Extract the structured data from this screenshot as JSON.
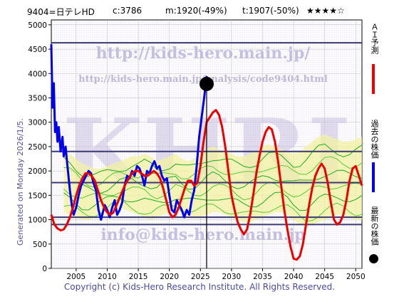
{
  "header": {
    "code_name": "9404=日テレHD",
    "current": "c:3786",
    "m_value": "m:1920(-49%)",
    "t_value": "t:1907(-50%)",
    "stars": "★★★★☆"
  },
  "side_note": "Generated on Monday 2026/1/5.",
  "watermarks": {
    "url": "http://kids-hero.main.jp/",
    "analysis_url": "http://kids-hero.main.jp/analysis/code9404.html",
    "big": "KHRI",
    "email": "info@kids-hero.main.jp"
  },
  "footer": "Copyright (c) Kids-Hero Research Institute. All Rights Reserved.",
  "legend": {
    "ai_forecast": "ＡＩ予測",
    "past_price": "過去の株価",
    "latest_price": "最新の株価",
    "ai_color": "#ee0000",
    "past_color": "#0000ee",
    "latest_color": "#000000"
  },
  "chart_data": {
    "type": "line",
    "xlim": [
      2001,
      2051
    ],
    "ylim": [
      0,
      5100
    ],
    "x_ticks": [
      2005,
      2010,
      2015,
      2020,
      2025,
      2030,
      2035,
      2040,
      2045,
      2050
    ],
    "y_ticks": [
      0,
      500,
      1000,
      1500,
      2000,
      2500,
      3000,
      3500,
      4000,
      4500,
      5000
    ],
    "grid": true,
    "horizontal_levels": [
      4630,
      2400,
      1760,
      1050,
      900
    ],
    "current_marker": {
      "x": 2026.0,
      "y": 3786
    },
    "vertical_marker_x": 2026.0,
    "series": [
      {
        "color": "#0000ee",
        "x": [
          2001.0,
          2001.2,
          2001.4,
          2001.6,
          2001.8,
          2002.0,
          2002.2,
          2002.5,
          2002.8,
          2003.0,
          2003.3,
          2003.6,
          2004.0,
          2004.3,
          2004.6,
          2005.0,
          2005.4,
          2005.8,
          2006.2,
          2006.6,
          2007.0,
          2007.4,
          2007.8,
          2008.2,
          2008.6,
          2009.0,
          2009.3,
          2009.6,
          2010.0,
          2010.4,
          2010.8,
          2011.2,
          2011.6,
          2012.0,
          2012.4,
          2012.8,
          2013.2,
          2013.6,
          2014.0,
          2014.4,
          2014.8,
          2015.2,
          2015.6,
          2016.0,
          2016.4,
          2016.8,
          2017.2,
          2017.6,
          2018.0,
          2018.4,
          2018.8,
          2019.2,
          2019.6,
          2020.0,
          2020.4,
          2020.8,
          2021.2,
          2021.6,
          2022.0,
          2022.4,
          2022.8,
          2023.2,
          2023.6,
          2024.0,
          2024.4,
          2024.8,
          2025.2,
          2025.6,
          2026.0
        ],
        "y": [
          4600,
          3300,
          3800,
          2800,
          3000,
          2600,
          2900,
          2400,
          2700,
          2300,
          2500,
          2100,
          1600,
          1300,
          1100,
          1250,
          1500,
          1700,
          1800,
          1900,
          2000,
          1950,
          1750,
          1600,
          1200,
          1000,
          1150,
          1300,
          1200,
          1050,
          1250,
          1400,
          1100,
          1200,
          1350,
          1700,
          1900,
          1850,
          2000,
          1900,
          2100,
          2050,
          1900,
          1700,
          2000,
          1950,
          2100,
          2200,
          2050,
          2100,
          1900,
          1800,
          1850,
          1500,
          1200,
          1150,
          1400,
          1300,
          1200,
          1050,
          1200,
          1100,
          1400,
          1600,
          2100,
          2700,
          3100,
          3500,
          3950
        ]
      },
      {
        "color": "#ee0000",
        "x": [
          2001.0,
          2001.5,
          2002.0,
          2002.5,
          2003.0,
          2003.5,
          2004.0,
          2004.5,
          2005.0,
          2005.5,
          2006.0,
          2006.5,
          2007.0,
          2007.5,
          2008.0,
          2008.5,
          2009.0,
          2009.5,
          2010.0,
          2010.5,
          2011.0,
          2011.5,
          2012.0,
          2012.5,
          2013.0,
          2013.5,
          2014.0,
          2014.5,
          2015.0,
          2015.5,
          2016.0,
          2016.5,
          2017.0,
          2017.5,
          2018.0,
          2018.5,
          2019.0,
          2019.5,
          2020.0,
          2020.5,
          2021.0,
          2021.5,
          2022.0,
          2022.5,
          2023.0,
          2023.5,
          2024.0,
          2024.5,
          2025.0,
          2025.5,
          2026.0,
          2026.5,
          2027.0,
          2027.5,
          2028.0,
          2028.5,
          2029.0,
          2029.5,
          2030.0,
          2030.5,
          2031.0,
          2031.5,
          2032.0,
          2032.5,
          2033.0,
          2033.5,
          2034.0,
          2034.5,
          2035.0,
          2035.5,
          2036.0,
          2036.5,
          2037.0,
          2037.5,
          2038.0,
          2038.5,
          2039.0,
          2039.5,
          2040.0,
          2040.5,
          2041.0,
          2041.5,
          2042.0,
          2042.5,
          2043.0,
          2043.5,
          2044.0,
          2044.5,
          2045.0,
          2045.5,
          2046.0,
          2046.5,
          2047.0,
          2047.5,
          2048.0,
          2048.5,
          2049.0,
          2049.5,
          2050.0,
          2050.5,
          2051.0
        ],
        "y": [
          1100,
          900,
          820,
          780,
          800,
          900,
          1050,
          1250,
          1500,
          1700,
          1850,
          1950,
          1950,
          1900,
          1800,
          1600,
          1400,
          1250,
          1150,
          1100,
          1150,
          1300,
          1450,
          1600,
          1750,
          1850,
          1950,
          2000,
          2000,
          1950,
          1900,
          1900,
          1950,
          2000,
          1950,
          1850,
          1650,
          1400,
          1150,
          1050,
          1100,
          1250,
          1450,
          1650,
          1800,
          1800,
          1700,
          1750,
          2100,
          2600,
          3000,
          3100,
          3200,
          3250,
          3150,
          2900,
          2500,
          2000,
          1500,
          1200,
          950,
          800,
          700,
          800,
          1100,
          1500,
          1950,
          2300,
          2600,
          2800,
          2900,
          2850,
          2600,
          2200,
          1700,
          1200,
          800,
          450,
          200,
          180,
          250,
          500,
          900,
          1300,
          1650,
          1900,
          2050,
          2150,
          2050,
          1750,
          1350,
          1000,
          900,
          950,
          1100,
          1400,
          1800,
          2050,
          2100,
          1900,
          1700
        ]
      }
    ],
    "band_upper": [
      2400,
      2350,
      2250,
      2150,
      2100,
      2050,
      2050,
      2100,
      2150,
      2200,
      2250,
      2300,
      2300,
      2350,
      2300,
      2200,
      2250,
      2300,
      2350,
      2250,
      2200,
      2250,
      2350,
      2450,
      2500,
      2450,
      2400,
      2350,
      2300,
      2300,
      2350,
      2400,
      2500,
      2550,
      2500,
      2450,
      2400,
      2350,
      2400,
      2500,
      2600,
      2700,
      2750,
      2700,
      2650,
      2600,
      2600,
      2650,
      2700
    ],
    "band_lower": [
      1150,
      1100,
      1050,
      1000,
      1000,
      1050,
      1100,
      1150,
      1200,
      1250,
      1200,
      1150,
      1100,
      1050,
      1000,
      1050,
      1100,
      1150,
      1200,
      1150,
      1100,
      1050,
      1050,
      1100,
      1150,
      1150,
      1100,
      1050,
      1000,
      950,
      950,
      1000,
      1050,
      1100,
      1150,
      1150,
      1100,
      1000,
      900,
      850,
      900,
      950,
      1000,
      1050,
      1100,
      1100,
      1050,
      1000,
      1000
    ],
    "band_x_start": 2003,
    "band_x_step": 1
  }
}
